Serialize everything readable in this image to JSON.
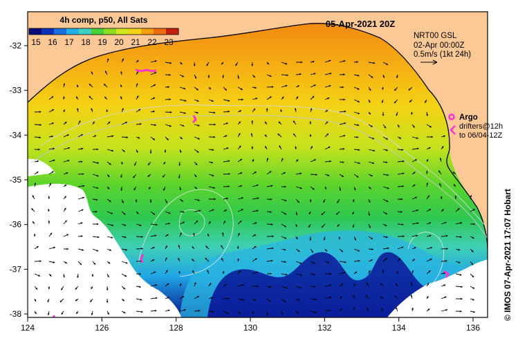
{
  "colorbar": {
    "title": "4h comp, p50, All Sats",
    "ticks": [
      "15",
      "16",
      "17",
      "18",
      "19",
      "20",
      "21",
      "22",
      "23"
    ],
    "colors": [
      "#0a0a7a",
      "#0b2fb8",
      "#1a6fe0",
      "#22b0e8",
      "#3fd0c0",
      "#46d23a",
      "#8fdc20",
      "#d2e61c",
      "#f3d414",
      "#f6a010",
      "#ee6a10",
      "#c41f0c"
    ]
  },
  "header": {
    "date": "05-Apr-2021 20Z",
    "current_info": [
      "NRT00 GSL",
      "02-Apr 00:00Z",
      "0.5m/s (1kt 24h)"
    ]
  },
  "argo": {
    "label": "Argo",
    "note": [
      "drifters@12h",
      "to 06/04-12Z"
    ],
    "color": "#ff33cc"
  },
  "credit": "© IMOS 07-Apr-2021 17:07 Hobart",
  "axes": {
    "x_ticks": [
      "124",
      "126",
      "128",
      "130",
      "132",
      "134",
      "136"
    ],
    "y_ticks": [
      "-32",
      "-33",
      "-34",
      "-35",
      "-36",
      "-37",
      "-38"
    ]
  },
  "colors": {
    "land": "#fcc896",
    "frame": "#000000",
    "no_data": "#ffffff"
  }
}
